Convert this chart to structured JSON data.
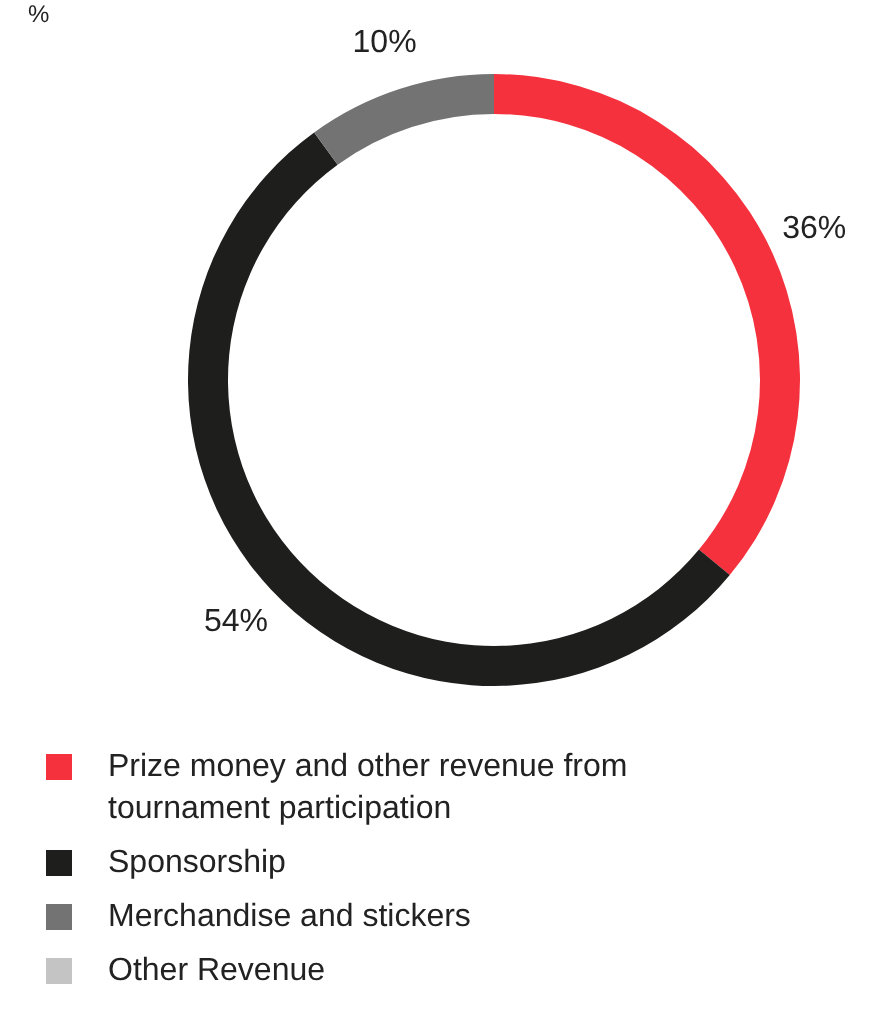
{
  "chart_data": {
    "type": "donut",
    "title": "%",
    "categories": [
      "Prize money and other revenue from tournament participation",
      "Sponsorship",
      "Merchandise and stickers",
      "Other Revenue"
    ],
    "values": [
      36,
      54,
      10,
      0
    ],
    "colors": [
      "#f5313e",
      "#1e1e1c",
      "#737373",
      "#c4c4c4"
    ],
    "value_labels": [
      "36%",
      "54%",
      "10%",
      null
    ],
    "legend": "bottom"
  }
}
